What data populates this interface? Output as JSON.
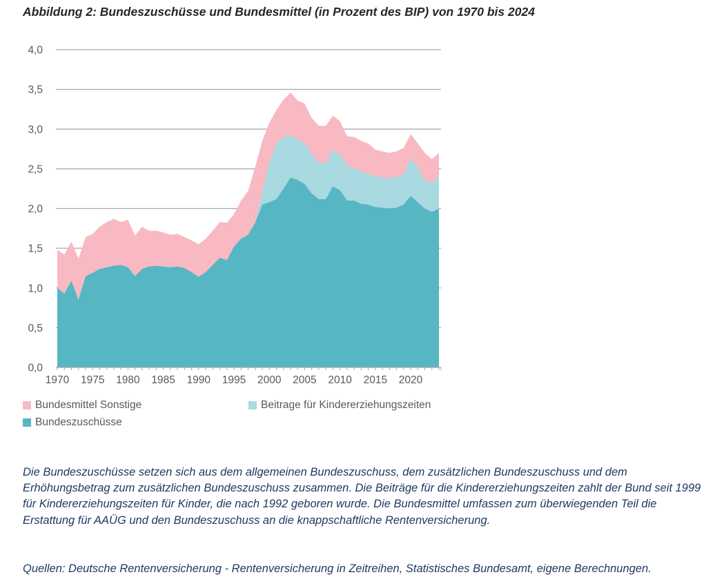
{
  "title": "Abbildung 2: Bundeszuschüsse und Bundesmittel (in Prozent des BIP) von 1970 bis 2024",
  "legend": {
    "items": [
      {
        "label": "Bundesmittel Sonstige",
        "color": "#f8b9c2"
      },
      {
        "label": "Beitrage für Kindererziehungszeiten",
        "color": "#a9d9e1"
      },
      {
        "label": "Bundeszuschüsse",
        "color": "#57b6c3"
      }
    ]
  },
  "notes": {
    "paragraph": "Die Bundeszuschüsse setzen sich aus dem allgemeinen Bundeszuschuss, dem zusätzlichen Bundeszuschuss und dem Erhöhungsbetrag zum zusätzlichen Bundeszuschuss zusammen. Die Beiträge für die Kindererziehungszeiten zahlt der Bund seit 1999 für Kindererziehungszeiten für Kinder, die nach 1992 geboren wurde. Die Bundesmittel umfassen zum überwiegenden Teil die Erstattung für AAÜG und den Bundeszuschuss an die knappschaftliche Rentenversicherung."
  },
  "sources": {
    "text": "Quellen: Deutsche Rentenversicherung - Rentenversicherung in Zeitreihen, Statistisches Bundesamt, eigene Berechnungen."
  },
  "chart_data": {
    "type": "area",
    "stacked": true,
    "title": "",
    "xlabel": "",
    "ylabel": "Prozent des BIP",
    "ylim": [
      0,
      4.0
    ],
    "ytick_step": 0.5,
    "ytick_labels": [
      "0,0",
      "0,5",
      "1,0",
      "1,5",
      "2,0",
      "2,5",
      "3,0",
      "3,5",
      "4,0"
    ],
    "xticks": [
      1970,
      1975,
      1980,
      1985,
      1990,
      1995,
      2000,
      2005,
      2010,
      2015,
      2020
    ],
    "grid": true,
    "legend_position": "bottom",
    "x": [
      1970,
      1971,
      1972,
      1973,
      1974,
      1975,
      1976,
      1977,
      1978,
      1979,
      1980,
      1981,
      1982,
      1983,
      1984,
      1985,
      1986,
      1987,
      1988,
      1989,
      1990,
      1991,
      1992,
      1993,
      1994,
      1995,
      1996,
      1997,
      1998,
      1999,
      2000,
      2001,
      2002,
      2003,
      2004,
      2005,
      2006,
      2007,
      2008,
      2009,
      2010,
      2011,
      2012,
      2013,
      2014,
      2015,
      2016,
      2017,
      2018,
      2019,
      2020,
      2021,
      2022,
      2023,
      2024
    ],
    "series": [
      {
        "name": "Bundeszuschüsse",
        "color": "#57b6c3",
        "values": [
          1.0,
          0.93,
          1.09,
          0.85,
          1.15,
          1.19,
          1.24,
          1.26,
          1.28,
          1.29,
          1.26,
          1.15,
          1.24,
          1.27,
          1.28,
          1.27,
          1.26,
          1.27,
          1.25,
          1.2,
          1.14,
          1.2,
          1.29,
          1.38,
          1.35,
          1.52,
          1.62,
          1.67,
          1.82,
          2.05,
          2.08,
          2.12,
          2.25,
          2.39,
          2.36,
          2.31,
          2.19,
          2.12,
          2.12,
          2.28,
          2.23,
          2.1,
          2.1,
          2.06,
          2.05,
          2.02,
          2.01,
          2.0,
          2.01,
          2.05,
          2.16,
          2.08,
          2.0,
          1.96,
          2.0
        ]
      },
      {
        "name": "Beitrage für Kindererziehungszeiten",
        "color": "#a9d9e1",
        "values": [
          0,
          0,
          0,
          0,
          0,
          0,
          0,
          0,
          0,
          0,
          0,
          0,
          0,
          0,
          0,
          0,
          0,
          0,
          0,
          0,
          0,
          0,
          0,
          0,
          0,
          0,
          0,
          0,
          0,
          0.15,
          0.5,
          0.7,
          0.65,
          0.53,
          0.51,
          0.51,
          0.49,
          0.46,
          0.45,
          0.46,
          0.45,
          0.44,
          0.41,
          0.4,
          0.39,
          0.39,
          0.38,
          0.38,
          0.39,
          0.38,
          0.46,
          0.44,
          0.36,
          0.36,
          0.41
        ]
      },
      {
        "name": "Bundesmittel Sonstige",
        "color": "#f8b9c2",
        "values": [
          0.48,
          0.49,
          0.49,
          0.52,
          0.49,
          0.49,
          0.53,
          0.57,
          0.59,
          0.54,
          0.6,
          0.51,
          0.53,
          0.45,
          0.44,
          0.43,
          0.41,
          0.41,
          0.39,
          0.4,
          0.41,
          0.42,
          0.43,
          0.45,
          0.47,
          0.41,
          0.48,
          0.55,
          0.7,
          0.65,
          0.5,
          0.42,
          0.47,
          0.54,
          0.49,
          0.5,
          0.46,
          0.46,
          0.47,
          0.43,
          0.42,
          0.37,
          0.39,
          0.39,
          0.38,
          0.33,
          0.33,
          0.32,
          0.32,
          0.33,
          0.32,
          0.3,
          0.34,
          0.3,
          0.29
        ]
      }
    ],
    "style": {
      "grid_color": "#a6a6a6",
      "axis_color": "#a6a6a6",
      "tick_label_color": "#595959"
    }
  }
}
